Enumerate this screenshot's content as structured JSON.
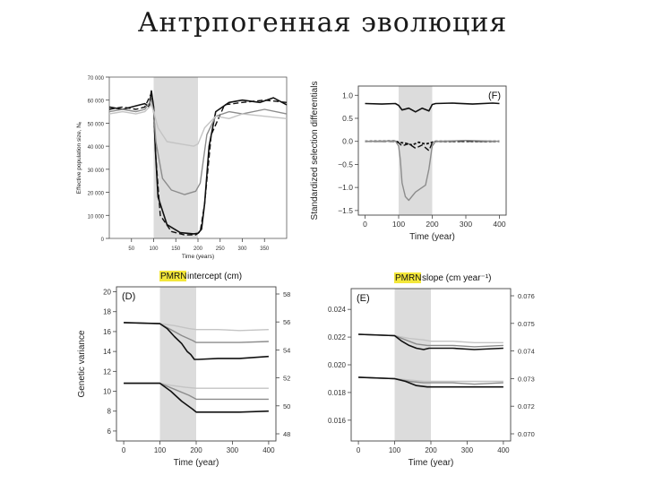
{
  "slide": {
    "title": "Антрпогенная эволюция"
  },
  "chart_data": [
    {
      "type": "line",
      "ylabel": "Effective population size, Nₑ",
      "xlabel": "Time (years)",
      "x_ticks": [
        "50",
        "100",
        "150",
        "200",
        "250",
        "300",
        "350"
      ],
      "y_ticks": [
        "0",
        "10 000",
        "20 000",
        "30 000",
        "40 000",
        "50 000",
        "60 000",
        "70 000"
      ],
      "xlim": [
        0,
        400
      ],
      "ylim": [
        0,
        70000
      ],
      "shaded_interval": [
        100,
        200
      ],
      "series": [
        {
          "style": "solid-black",
          "x": [
            0,
            30,
            60,
            80,
            90,
            95,
            100,
            104,
            110,
            130,
            160,
            190,
            200,
            208,
            215,
            225,
            240,
            270,
            300,
            340,
            370,
            400
          ],
          "y": [
            57000,
            56000,
            57500,
            58500,
            57000,
            64000,
            57000,
            38000,
            18000,
            6000,
            2500,
            2000,
            2200,
            4000,
            15000,
            40000,
            55000,
            59000,
            60000,
            59000,
            61000,
            58000
          ]
        },
        {
          "style": "dashed-black",
          "x": [
            0,
            30,
            60,
            80,
            95,
            100,
            105,
            115,
            140,
            170,
            195,
            205,
            215,
            230,
            260,
            300,
            350,
            400
          ],
          "y": [
            56000,
            57000,
            56000,
            57000,
            63000,
            55000,
            35000,
            10000,
            3000,
            1500,
            1500,
            3000,
            15000,
            45000,
            58000,
            59000,
            60000,
            59000
          ]
        },
        {
          "style": "solid-gray",
          "x": [
            0,
            30,
            60,
            80,
            95,
            100,
            105,
            120,
            140,
            170,
            195,
            205,
            220,
            240,
            270,
            300,
            350,
            400
          ],
          "y": [
            55000,
            56000,
            55000,
            56000,
            60000,
            55000,
            42000,
            26000,
            21000,
            19000,
            20500,
            24000,
            45000,
            53000,
            55000,
            54000,
            56000,
            54000
          ]
        },
        {
          "style": "light-gray",
          "x": [
            0,
            30,
            60,
            80,
            95,
            100,
            110,
            130,
            160,
            190,
            200,
            215,
            240,
            270,
            300,
            350,
            400
          ],
          "y": [
            54000,
            55000,
            54000,
            55000,
            58000,
            55000,
            48000,
            42000,
            41000,
            40000,
            41000,
            48000,
            53000,
            52000,
            54000,
            53000,
            52000
          ]
        }
      ]
    },
    {
      "type": "line",
      "label": "(F)",
      "ylabel": "Standardized selection differentials",
      "xlabel": "Time (year)",
      "x_ticks": [
        "0",
        "100",
        "200",
        "300",
        "400"
      ],
      "y_ticks": [
        "1.0",
        "0.5",
        "0.0",
        "−0.5",
        "−1.0",
        "−1.5"
      ],
      "xlim": [
        -20,
        420
      ],
      "ylim": [
        -1.6,
        1.2
      ],
      "shaded_interval": [
        100,
        200
      ],
      "series": [
        {
          "style": "solid-black",
          "x": [
            0,
            50,
            90,
            100,
            110,
            130,
            150,
            170,
            190,
            200,
            210,
            260,
            320,
            380,
            400
          ],
          "y": [
            0.82,
            0.81,
            0.82,
            0.78,
            0.68,
            0.72,
            0.64,
            0.72,
            0.66,
            0.8,
            0.82,
            0.83,
            0.81,
            0.83,
            0.82
          ]
        },
        {
          "style": "dashed-black",
          "x": [
            0,
            90,
            100,
            110,
            130,
            150,
            170,
            190,
            200,
            210,
            300,
            400
          ],
          "y": [
            0.0,
            0.0,
            -0.03,
            -0.1,
            -0.05,
            -0.15,
            -0.08,
            -0.2,
            -0.03,
            0.0,
            0.0,
            0.0
          ]
        },
        {
          "style": "dotted-black",
          "x": [
            0,
            90,
            100,
            120,
            140,
            160,
            180,
            200,
            210,
            300,
            400
          ],
          "y": [
            0.0,
            0.01,
            -0.02,
            -0.04,
            -0.08,
            -0.02,
            -0.06,
            -0.02,
            0.0,
            0.0,
            0.0
          ]
        },
        {
          "style": "solid-gray",
          "x": [
            0,
            90,
            100,
            105,
            110,
            120,
            130,
            150,
            180,
            190,
            200,
            210,
            300,
            400
          ],
          "y": [
            0.0,
            0.01,
            -0.1,
            -0.4,
            -0.9,
            -1.2,
            -1.28,
            -1.1,
            -0.95,
            -0.6,
            -0.1,
            0.0,
            0.02,
            0.0
          ]
        }
      ]
    },
    {
      "type": "line",
      "label": "(D)",
      "title_highlight": "PMRN",
      "title_rest": " intercept (cm)",
      "ylabel": "Genetic variance",
      "xlabel": "Time (year)",
      "x_ticks": [
        "0",
        "100",
        "200",
        "300",
        "400"
      ],
      "y_ticks_left": [
        "20",
        "18",
        "16",
        "14",
        "12",
        "10",
        "8",
        "6"
      ],
      "y_ticks_right": [
        "58",
        "56",
        "54",
        "52",
        "50",
        "48"
      ],
      "xlim": [
        -20,
        420
      ],
      "ylim": [
        5,
        20.5
      ],
      "shaded_interval": [
        100,
        200
      ],
      "series": [
        {
          "style": "light-gray",
          "x": [
            0,
            100,
            140,
            180,
            200,
            260,
            320,
            400
          ],
          "y": [
            16.9,
            16.8,
            16.6,
            16.3,
            16.2,
            16.2,
            16.1,
            16.2
          ]
        },
        {
          "style": "solid-gray",
          "x": [
            0,
            100,
            130,
            160,
            190,
            200,
            260,
            320,
            400
          ],
          "y": [
            16.9,
            16.8,
            16.2,
            15.6,
            15.1,
            14.9,
            14.9,
            14.9,
            15.0
          ]
        },
        {
          "style": "solid-black",
          "x": [
            0,
            100,
            120,
            140,
            160,
            175,
            185,
            195,
            205,
            260,
            320,
            400
          ],
          "y": [
            16.9,
            16.8,
            16.3,
            15.5,
            14.8,
            14.0,
            13.7,
            13.2,
            13.2,
            13.3,
            13.3,
            13.5
          ]
        },
        {
          "style": "light-gray",
          "x": [
            0,
            100,
            130,
            170,
            200,
            260,
            320,
            400
          ],
          "y": [
            10.8,
            10.8,
            10.6,
            10.4,
            10.3,
            10.3,
            10.3,
            10.3
          ]
        },
        {
          "style": "solid-gray",
          "x": [
            0,
            100,
            140,
            180,
            200,
            260,
            320,
            400
          ],
          "y": [
            10.8,
            10.8,
            10.2,
            9.6,
            9.2,
            9.2,
            9.2,
            9.2
          ]
        },
        {
          "style": "solid-black",
          "x": [
            0,
            100,
            130,
            160,
            190,
            200,
            260,
            320,
            400
          ],
          "y": [
            10.8,
            10.8,
            10.0,
            9.0,
            8.2,
            7.9,
            7.9,
            7.9,
            8.0
          ]
        }
      ]
    },
    {
      "type": "line",
      "label": "(E)",
      "title_highlight": "PMRN",
      "title_rest": " slope (cm year⁻¹)",
      "xlabel": "Time (year)",
      "x_ticks": [
        "0",
        "100",
        "200",
        "300",
        "400"
      ],
      "y_ticks_left": [
        "0.024",
        "0.022",
        "0.020",
        "0.018",
        "0.016"
      ],
      "y_ticks_right": [
        "0.076",
        "0.075",
        "0.074",
        "0.073",
        "0.072",
        "0.070"
      ],
      "xlim": [
        -20,
        420
      ],
      "ylim": [
        0.0145,
        0.0255
      ],
      "shaded_interval": [
        100,
        200
      ],
      "series": [
        {
          "style": "light-gray",
          "x": [
            0,
            100,
            140,
            180,
            200,
            260,
            320,
            400
          ],
          "y": [
            0.0222,
            0.0221,
            0.0219,
            0.0218,
            0.0217,
            0.0217,
            0.0216,
            0.0216
          ]
        },
        {
          "style": "solid-gray",
          "x": [
            0,
            100,
            130,
            160,
            190,
            200,
            260,
            320,
            400
          ],
          "y": [
            0.0222,
            0.0221,
            0.0218,
            0.0215,
            0.0214,
            0.0214,
            0.0214,
            0.0213,
            0.0214
          ]
        },
        {
          "style": "solid-black",
          "x": [
            0,
            100,
            120,
            140,
            160,
            180,
            195,
            210,
            260,
            320,
            400
          ],
          "y": [
            0.0222,
            0.0221,
            0.0217,
            0.0214,
            0.0212,
            0.0211,
            0.0212,
            0.0212,
            0.0212,
            0.0211,
            0.0212
          ]
        },
        {
          "style": "light-gray",
          "x": [
            0,
            100,
            140,
            180,
            200,
            260,
            320,
            400
          ],
          "y": [
            0.0191,
            0.019,
            0.0189,
            0.0188,
            0.0188,
            0.0188,
            0.0188,
            0.0188
          ]
        },
        {
          "style": "solid-gray",
          "x": [
            0,
            100,
            140,
            180,
            200,
            260,
            320,
            400
          ],
          "y": [
            0.0191,
            0.019,
            0.0188,
            0.0187,
            0.0187,
            0.0187,
            0.0186,
            0.0187
          ]
        },
        {
          "style": "solid-black",
          "x": [
            0,
            100,
            130,
            160,
            190,
            200,
            260,
            320,
            400
          ],
          "y": [
            0.0191,
            0.019,
            0.0188,
            0.0185,
            0.0184,
            0.0184,
            0.0184,
            0.0184,
            0.0184
          ]
        }
      ]
    }
  ]
}
